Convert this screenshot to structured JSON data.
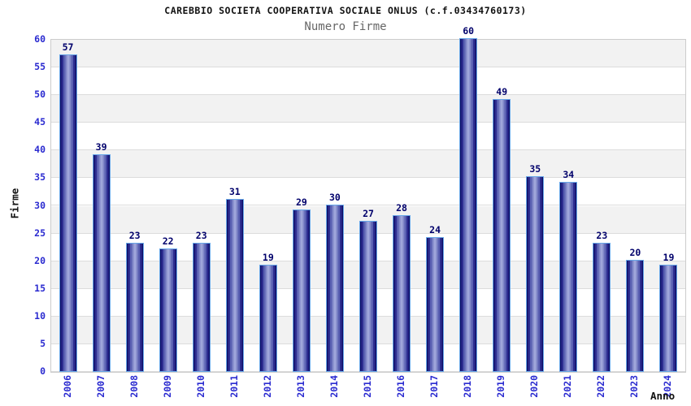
{
  "chart_data": {
    "type": "bar",
    "title": "CAREBBIO SOCIETA COOPERATIVA SOCIALE ONLUS (c.f.03434760173)",
    "subtitle": "Numero Firme",
    "xlabel": "Anno",
    "ylabel": "Firme",
    "categories": [
      "2006",
      "2007",
      "2008",
      "2009",
      "2010",
      "2011",
      "2012",
      "2013",
      "2014",
      "2015",
      "2016",
      "2017",
      "2018",
      "2019",
      "2020",
      "2021",
      "2022",
      "2023",
      "2024"
    ],
    "values": [
      57,
      39,
      23,
      22,
      23,
      31,
      19,
      29,
      30,
      27,
      28,
      24,
      60,
      49,
      35,
      34,
      23,
      20,
      19
    ],
    "ylim": [
      0,
      60
    ],
    "ytick_step": 5,
    "legend": "none",
    "grid": "horizontal-bands-every-5",
    "colors": {
      "band_gray": "#f2f2f2",
      "band_white": "#ffffff",
      "gridline": "#dcdcdc",
      "plot_border": "#cccccc",
      "bar_edge": "#0f0f68",
      "bar_center": "#9fa6da",
      "bar_border": "#68a7e8",
      "tick_label": "#2b2bd0",
      "value_label": "#00006b",
      "title_color": "#111111",
      "subtitle_color": "#666666"
    }
  }
}
